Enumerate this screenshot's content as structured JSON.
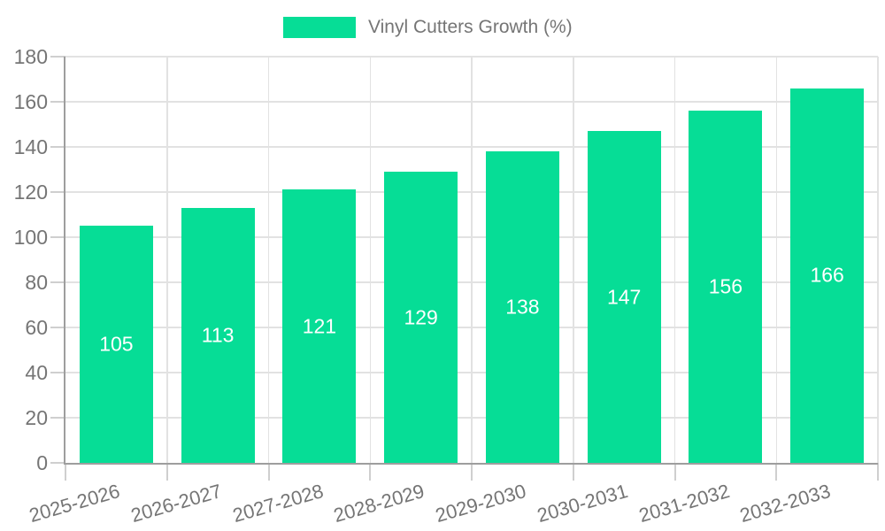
{
  "chart_data": {
    "type": "bar",
    "title": "Vinyl Cutters Growth (%)",
    "legend_label": "Vinyl Cutters Growth (%)",
    "legend_position": "top",
    "categories": [
      "2025-2026",
      "2026-2027",
      "2027-2028",
      "2028-2029",
      "2029-2030",
      "2030-2031",
      "2031-2032",
      "2032-2033"
    ],
    "series": [
      {
        "name": "Vinyl Cutters Growth (%)",
        "values": [
          105,
          113,
          121,
          129,
          138,
          147,
          156,
          166
        ]
      }
    ],
    "value_labels_shown": true,
    "xlabel": "",
    "ylabel": "",
    "ylim": [
      0,
      180
    ],
    "yticks": [
      0,
      20,
      40,
      60,
      80,
      100,
      120,
      140,
      160,
      180
    ],
    "grid": "horizontal-and-vertical",
    "x_label_rotation_deg": -16,
    "colors": {
      "bar": "#06DD96",
      "value_label": "#FFFFFF",
      "axis_line": "#9E9E9E",
      "grid_line": "#E2E2E2",
      "tick_mark": "#CFCFCF",
      "tick_label": "#757575",
      "legend_text": "#757575",
      "background": "#FFFFFF"
    }
  }
}
